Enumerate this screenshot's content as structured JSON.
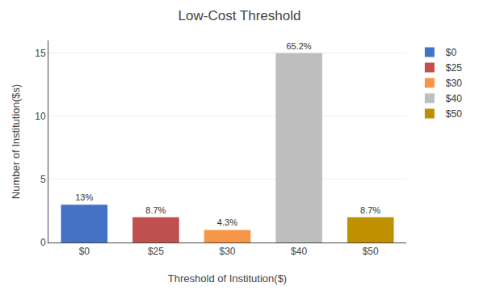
{
  "chart_data": {
    "type": "bar",
    "title": "Low-Cost Threshold",
    "xlabel": "Threshold of Institution($)",
    "ylabel": "Number of Institution($s)",
    "categories": [
      "$0",
      "$25",
      "$30",
      "$40",
      "$50"
    ],
    "values": [
      3,
      2,
      1,
      15,
      2
    ],
    "annotations": [
      "13%",
      "8.7%",
      "4.3%",
      "65.2%",
      "8.7%"
    ],
    "colors": [
      "#4472C4",
      "#C0504D",
      "#F79646",
      "#BEBEBE",
      "#BF9000"
    ],
    "ylim": [
      0,
      16
    ],
    "yticks": [
      0,
      5,
      10,
      15
    ],
    "grid": true,
    "legend": "right"
  }
}
